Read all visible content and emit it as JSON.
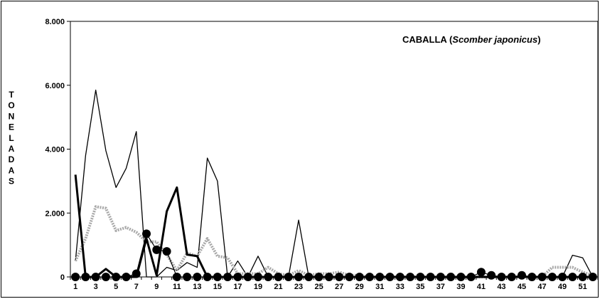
{
  "chart_data": {
    "type": "line",
    "title_main": "CABALLA (",
    "title_species": "Scomber japonicus",
    "title_close": ")",
    "ylabel": "TONELADAS",
    "ylim": [
      0,
      8000
    ],
    "y_ticks": [
      "0",
      "2.000",
      "4.000",
      "6.000",
      "8.000"
    ],
    "y_tick_values": [
      0,
      2000,
      4000,
      6000,
      8000
    ],
    "x_tick_labels": [
      "1",
      "3",
      "5",
      "7",
      "9",
      "11",
      "13",
      "15",
      "17",
      "19",
      "21",
      "23",
      "25",
      "27",
      "29",
      "31",
      "33",
      "35",
      "37",
      "39",
      "41",
      "43",
      "45",
      "47",
      "49",
      "51"
    ],
    "x": [
      1,
      2,
      3,
      4,
      5,
      6,
      7,
      8,
      9,
      10,
      11,
      12,
      13,
      14,
      15,
      16,
      17,
      18,
      19,
      20,
      21,
      22,
      23,
      24,
      25,
      26,
      27,
      28,
      29,
      30,
      31,
      32,
      33,
      34,
      35,
      36,
      37,
      38,
      39,
      40,
      41,
      42,
      43,
      44,
      45,
      46,
      47,
      48,
      49,
      50,
      51,
      52
    ],
    "series": [
      {
        "style": "thin-black",
        "color": "#000000",
        "values": [
          500,
          3800,
          5850,
          3950,
          2800,
          3400,
          4550,
          0,
          0,
          300,
          200,
          450,
          300,
          3720,
          3000,
          0,
          500,
          0,
          650,
          0,
          0,
          0,
          1780,
          0,
          0,
          0,
          0,
          0,
          0,
          0,
          0,
          0,
          0,
          0,
          0,
          0,
          0,
          0,
          0,
          0,
          0,
          0,
          0,
          0,
          0,
          0,
          0,
          0,
          0,
          680,
          600,
          0
        ]
      },
      {
        "style": "dotted-gray",
        "color": "#aaaaaa",
        "values": [
          500,
          1200,
          2200,
          2150,
          1450,
          1550,
          1400,
          1100,
          1100,
          700,
          200,
          750,
          650,
          1200,
          650,
          600,
          100,
          100,
          100,
          300,
          100,
          50,
          200,
          50,
          100,
          100,
          150,
          50,
          50,
          0,
          0,
          0,
          0,
          0,
          0,
          0,
          0,
          0,
          0,
          0,
          0,
          0,
          0,
          0,
          0,
          0,
          0,
          300,
          300,
          300,
          150,
          50
        ]
      },
      {
        "style": "thick-black",
        "color": "#000000",
        "values": [
          3200,
          0,
          0,
          250,
          0,
          0,
          0,
          1200,
          50,
          2050,
          2800,
          700,
          650,
          0,
          0,
          0,
          0,
          0,
          0,
          0,
          0,
          0,
          0,
          0,
          0,
          0,
          0,
          0,
          0,
          0,
          0,
          0,
          0,
          0,
          0,
          0,
          0,
          0,
          0,
          0,
          0,
          0,
          0,
          0,
          0,
          0,
          0,
          0,
          0,
          0,
          0,
          0
        ]
      },
      {
        "style": "black-circles",
        "color": "#000000",
        "values": [
          0,
          0,
          0,
          0,
          0,
          0,
          100,
          1350,
          850,
          800,
          0,
          0,
          0,
          0,
          0,
          0,
          0,
          0,
          0,
          0,
          0,
          0,
          0,
          0,
          0,
          0,
          0,
          0,
          0,
          0,
          0,
          0,
          0,
          0,
          0,
          0,
          0,
          0,
          0,
          0,
          150,
          50,
          0,
          0,
          50,
          0,
          0,
          0,
          0,
          0,
          0,
          0
        ]
      }
    ]
  }
}
